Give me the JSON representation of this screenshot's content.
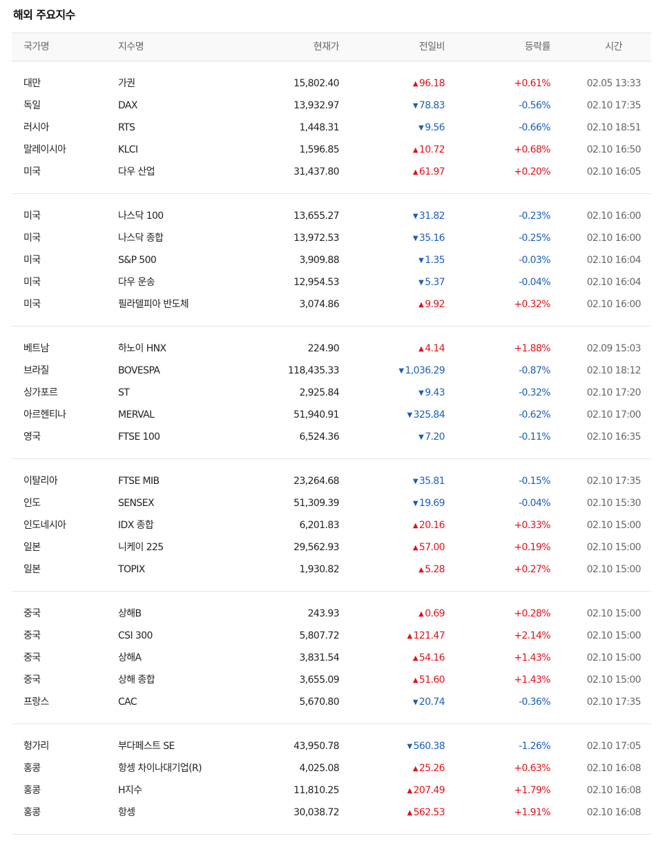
{
  "title": "해외 주요지수",
  "columns": {
    "country": "국가명",
    "index": "지수명",
    "price": "현재가",
    "change": "전일비",
    "rate": "등락률",
    "time": "시간"
  },
  "colors": {
    "up": "#e0121b",
    "down": "#1a5eb8"
  },
  "icons": {
    "up": "triangle-up-icon",
    "down": "triangle-down-icon"
  },
  "groups": [
    [
      {
        "country": "대만",
        "index": "가권",
        "price": "15,802.40",
        "dir": "up",
        "change": "96.18",
        "rate": "+0.61%",
        "time": "02.05 13:33"
      },
      {
        "country": "독일",
        "index": "DAX",
        "price": "13,932.97",
        "dir": "down",
        "change": "78.83",
        "rate": "-0.56%",
        "time": "02.10 17:35"
      },
      {
        "country": "러시아",
        "index": "RTS",
        "price": "1,448.31",
        "dir": "down",
        "change": "9.56",
        "rate": "-0.66%",
        "time": "02.10 18:51"
      },
      {
        "country": "말레이시아",
        "index": "KLCI",
        "price": "1,596.85",
        "dir": "up",
        "change": "10.72",
        "rate": "+0.68%",
        "time": "02.10 16:50"
      },
      {
        "country": "미국",
        "index": "다우 산업",
        "price": "31,437.80",
        "dir": "up",
        "change": "61.97",
        "rate": "+0.20%",
        "time": "02.10 16:05"
      }
    ],
    [
      {
        "country": "미국",
        "index": "나스닥 100",
        "price": "13,655.27",
        "dir": "down",
        "change": "31.82",
        "rate": "-0.23%",
        "time": "02.10 16:00"
      },
      {
        "country": "미국",
        "index": "나스닥 종합",
        "price": "13,972.53",
        "dir": "down",
        "change": "35.16",
        "rate": "-0.25%",
        "time": "02.10 16:00"
      },
      {
        "country": "미국",
        "index": "S&P 500",
        "price": "3,909.88",
        "dir": "down",
        "change": "1.35",
        "rate": "-0.03%",
        "time": "02.10 16:04"
      },
      {
        "country": "미국",
        "index": "다우 운송",
        "price": "12,954.53",
        "dir": "down",
        "change": "5.37",
        "rate": "-0.04%",
        "time": "02.10 16:04"
      },
      {
        "country": "미국",
        "index": "필라델피아 반도체",
        "price": "3,074.86",
        "dir": "up",
        "change": "9.92",
        "rate": "+0.32%",
        "time": "02.10 16:00"
      }
    ],
    [
      {
        "country": "베트남",
        "index": "하노이 HNX",
        "price": "224.90",
        "dir": "up",
        "change": "4.14",
        "rate": "+1.88%",
        "time": "02.09 15:03"
      },
      {
        "country": "브라질",
        "index": "BOVESPA",
        "price": "118,435.33",
        "dir": "down",
        "change": "1,036.29",
        "rate": "-0.87%",
        "time": "02.10 18:12"
      },
      {
        "country": "싱가포르",
        "index": "ST",
        "price": "2,925.84",
        "dir": "down",
        "change": "9.43",
        "rate": "-0.32%",
        "time": "02.10 17:20"
      },
      {
        "country": "아르헨티나",
        "index": "MERVAL",
        "price": "51,940.91",
        "dir": "down",
        "change": "325.84",
        "rate": "-0.62%",
        "time": "02.10 17:00"
      },
      {
        "country": "영국",
        "index": "FTSE 100",
        "price": "6,524.36",
        "dir": "down",
        "change": "7.20",
        "rate": "-0.11%",
        "time": "02.10 16:35"
      }
    ],
    [
      {
        "country": "이탈리아",
        "index": "FTSE MIB",
        "price": "23,264.68",
        "dir": "down",
        "change": "35.81",
        "rate": "-0.15%",
        "time": "02.10 17:35"
      },
      {
        "country": "인도",
        "index": "SENSEX",
        "price": "51,309.39",
        "dir": "down",
        "change": "19.69",
        "rate": "-0.04%",
        "time": "02.10 15:30"
      },
      {
        "country": "인도네시아",
        "index": "IDX 종합",
        "price": "6,201.83",
        "dir": "up",
        "change": "20.16",
        "rate": "+0.33%",
        "time": "02.10 15:00"
      },
      {
        "country": "일본",
        "index": "니케이 225",
        "price": "29,562.93",
        "dir": "up",
        "change": "57.00",
        "rate": "+0.19%",
        "time": "02.10 15:00"
      },
      {
        "country": "일본",
        "index": "TOPIX",
        "price": "1,930.82",
        "dir": "up",
        "change": "5.28",
        "rate": "+0.27%",
        "time": "02.10 15:00"
      }
    ],
    [
      {
        "country": "중국",
        "index": "상해B",
        "price": "243.93",
        "dir": "up",
        "change": "0.69",
        "rate": "+0.28%",
        "time": "02.10 15:00"
      },
      {
        "country": "중국",
        "index": "CSI 300",
        "price": "5,807.72",
        "dir": "up",
        "change": "121.47",
        "rate": "+2.14%",
        "time": "02.10 15:00"
      },
      {
        "country": "중국",
        "index": "상해A",
        "price": "3,831.54",
        "dir": "up",
        "change": "54.16",
        "rate": "+1.43%",
        "time": "02.10 15:00"
      },
      {
        "country": "중국",
        "index": "상해 종합",
        "price": "3,655.09",
        "dir": "up",
        "change": "51.60",
        "rate": "+1.43%",
        "time": "02.10 15:00"
      },
      {
        "country": "프랑스",
        "index": "CAC",
        "price": "5,670.80",
        "dir": "down",
        "change": "20.74",
        "rate": "-0.36%",
        "time": "02.10 17:35"
      }
    ],
    [
      {
        "country": "헝가리",
        "index": "부다페스트 SE",
        "price": "43,950.78",
        "dir": "down",
        "change": "560.38",
        "rate": "-1.26%",
        "time": "02.10 17:05"
      },
      {
        "country": "홍콩",
        "index": "항셍 차이나대기업(R)",
        "price": "4,025.08",
        "dir": "up",
        "change": "25.26",
        "rate": "+0.63%",
        "time": "02.10 16:08"
      },
      {
        "country": "홍콩",
        "index": "H지수",
        "price": "11,810.25",
        "dir": "up",
        "change": "207.49",
        "rate": "+1.79%",
        "time": "02.10 16:08"
      },
      {
        "country": "홍콩",
        "index": "항셍",
        "price": "30,038.72",
        "dir": "up",
        "change": "562.53",
        "rate": "+1.91%",
        "time": "02.10 16:08"
      }
    ]
  ]
}
